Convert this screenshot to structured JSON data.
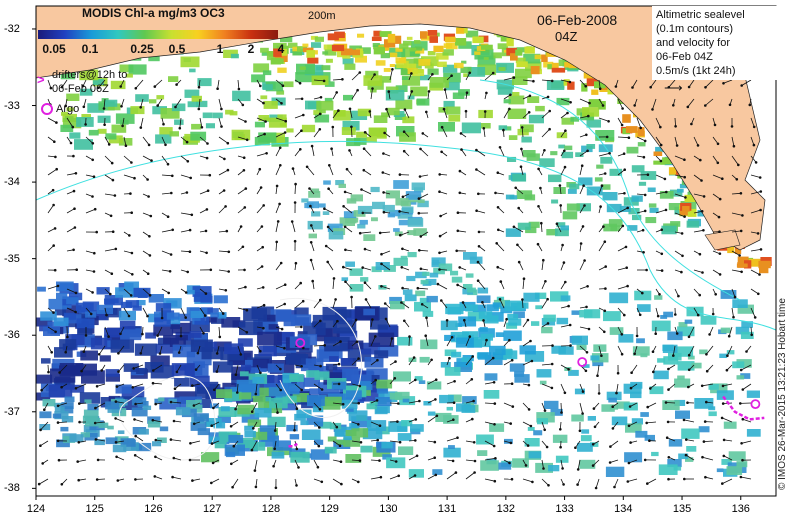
{
  "title": "MODIS Chl-a mg/m3 OC3",
  "date": "06-Feb-2008",
  "time": "04Z",
  "depth_label": "200m",
  "colorbar": {
    "ticks": [
      "0.05",
      "0.1",
      "0.25",
      "0.5",
      "1",
      "2",
      "4"
    ],
    "colors": [
      "#1a1a7a",
      "#2040c0",
      "#1a9ad8",
      "#30c8c0",
      "#60c850",
      "#c8e030",
      "#f8d020",
      "#f08020",
      "#c83010",
      "#8a1a10"
    ]
  },
  "legend": {
    "lines": [
      "Altimetric sealevel",
      "(0.1m contours)",
      "and velocity for",
      "06-Feb 04Z",
      "0.5m/s (1kt 24h)"
    ]
  },
  "drifters": {
    "lines": [
      "drifters@12h to",
      "06-Feb 06Z"
    ],
    "marker": ">"
  },
  "argo_label": "Argo",
  "credit": "© IMOS 26-Mar-2015 13:21:23 Hobart time",
  "x_axis": {
    "ticks": [
      "124",
      "125",
      "126",
      "127",
      "128",
      "129",
      "130",
      "131",
      "132",
      "133",
      "134",
      "135",
      "136"
    ],
    "min": 124,
    "max": 136.6
  },
  "y_axis": {
    "ticks": [
      "-32",
      "-33",
      "-34",
      "-35",
      "-36",
      "-37",
      "-38"
    ],
    "min": -38.1,
    "max": -31.7
  },
  "colors": {
    "land": "#f8c8a0",
    "ocean": "#ffffff",
    "contour": "#40e0e0",
    "argo": "#e020e0"
  },
  "argo_floats": [
    {
      "lon": 128.5,
      "lat": -36.1
    },
    {
      "lon": 133.3,
      "lat": -36.35
    },
    {
      "lon": 136.25,
      "lat": -36.9
    }
  ],
  "drifter_tracks": [
    [
      [
        128.3,
        -37.45
      ],
      [
        128.38,
        -37.45
      ],
      [
        128.45,
        -37.42
      ]
    ],
    [
      [
        135.7,
        -36.8
      ],
      [
        135.9,
        -37.0
      ],
      [
        136.15,
        -37.1
      ],
      [
        136.4,
        -37.08
      ]
    ]
  ]
}
